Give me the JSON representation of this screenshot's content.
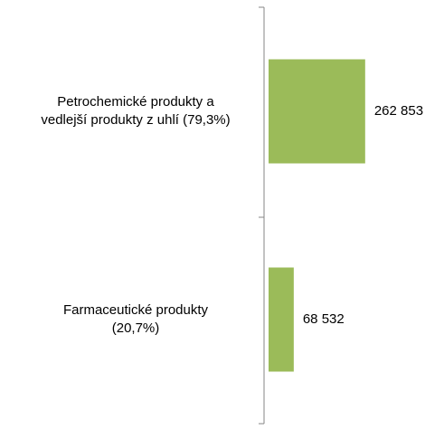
{
  "chart_data": {
    "type": "hbar",
    "categories": [
      "Petrochemické produkty a\nvedlejší produkty z uhlí (79,3%)",
      "Farmaceutické produkty\n(20,7%)"
    ],
    "values": [
      262853,
      68532
    ],
    "value_labels": [
      "262 853",
      "68 532"
    ],
    "color": "#9bbb59",
    "xlim": [
      0,
      470000
    ]
  }
}
